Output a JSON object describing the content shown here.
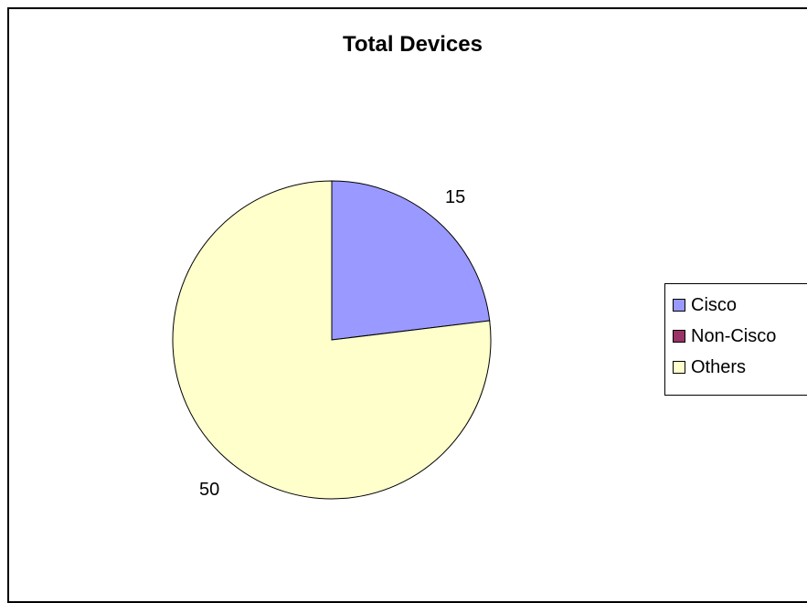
{
  "chart_data": {
    "type": "pie",
    "title": "Total Devices",
    "series": [
      {
        "name": "Cisco",
        "value": 15,
        "color": "#9999ff",
        "label": "15"
      },
      {
        "name": "Non-Cisco",
        "value": 0,
        "color": "#993366",
        "label": ""
      },
      {
        "name": "Others",
        "value": 50,
        "color": "#ffffcc",
        "label": "50"
      }
    ],
    "legend": {
      "placement": "right"
    },
    "border_color": "#000000"
  }
}
